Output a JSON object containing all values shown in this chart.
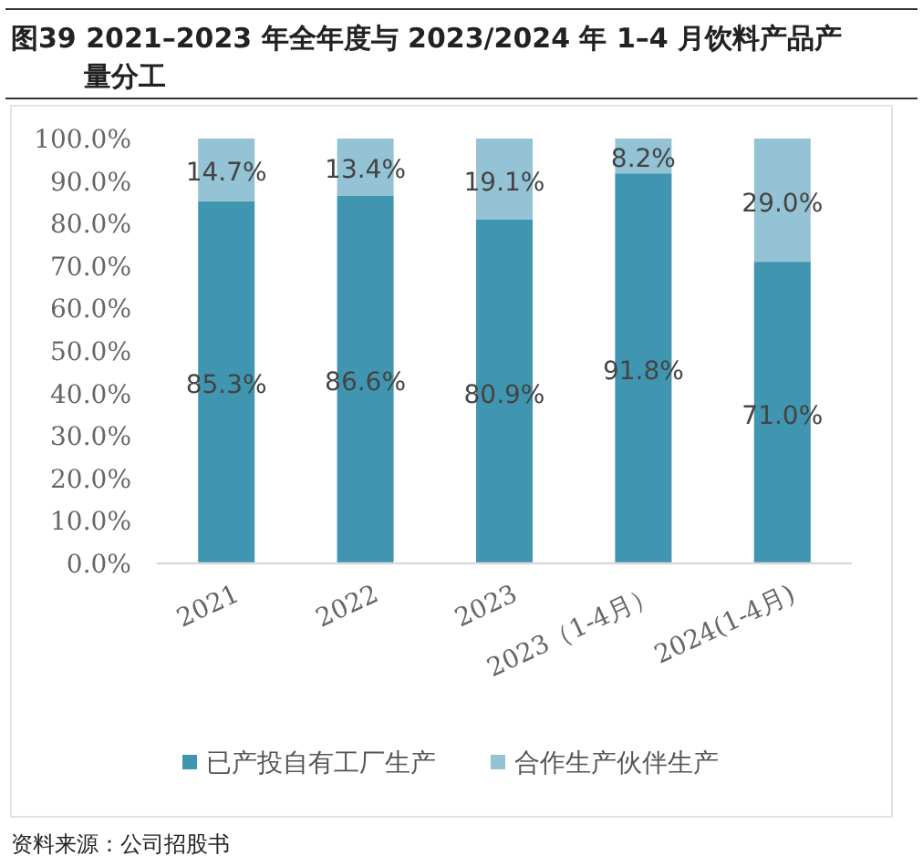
{
  "chart_data": {
    "type": "bar",
    "title": "图39  2021–2023 年全年度与 2023/2024 年 1–4 月饮料产品产量分工",
    "categories": [
      "2021",
      "2022",
      "2023",
      "2023（1-4月）",
      "2024(1-4月)"
    ],
    "stacked": true,
    "series": [
      {
        "name": "已产投自有工厂生产",
        "color": "#4095b0",
        "values": [
          85.3,
          86.6,
          80.9,
          91.8,
          71.0
        ],
        "value_labels": [
          "85.3%",
          "86.6%",
          "80.9%",
          "91.8%",
          "71.0%"
        ]
      },
      {
        "name": "合作生产伙伴生产",
        "color": "#93c3d4",
        "values": [
          14.7,
          13.4,
          19.1,
          8.2,
          29.0
        ],
        "value_labels": [
          "14.7%",
          "13.4%",
          "19.1%",
          "8.2%",
          "29.0%"
        ]
      }
    ],
    "ylim": [
      0,
      100
    ],
    "yticks": [
      {
        "value": 0,
        "label": "0.0%"
      },
      {
        "value": 10,
        "label": "10.0%"
      },
      {
        "value": 20,
        "label": "20.0%"
      },
      {
        "value": 30,
        "label": "30.0%"
      },
      {
        "value": 40,
        "label": "40.0%"
      },
      {
        "value": 50,
        "label": "50.0%"
      },
      {
        "value": 60,
        "label": "60.0%"
      },
      {
        "value": 70,
        "label": "70.0%"
      },
      {
        "value": 80,
        "label": "80.0%"
      },
      {
        "value": 90,
        "label": "90.0%"
      },
      {
        "value": 100,
        "label": "100.0%"
      }
    ],
    "legend": "bottom",
    "annotations": [
      "资料来源：公司招股书"
    ]
  }
}
